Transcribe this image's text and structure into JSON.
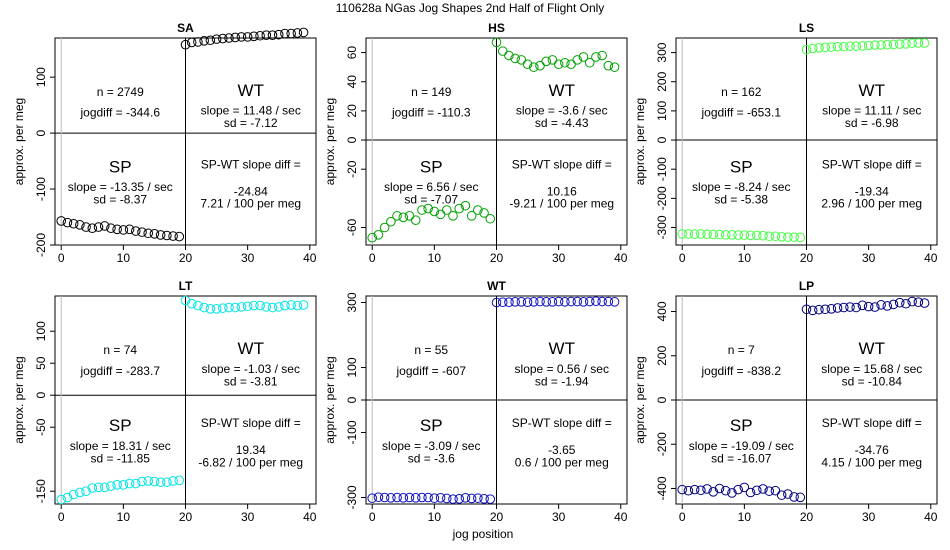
{
  "figure": {
    "title": "110628a   NGas Jog Shapes 2nd Half of Flight Only",
    "xlabel": "jog position"
  },
  "chart_data": [
    {
      "type": "scatter",
      "title": "SA",
      "ylabel": "approx. per meg",
      "xlim": [
        -1,
        41
      ],
      "xticks": [
        0,
        10,
        20,
        30,
        40
      ],
      "ylim": [
        -200,
        170
      ],
      "yticks": [
        -200,
        -100,
        0,
        100
      ],
      "hline": 0,
      "vline": 20,
      "color": "#000000",
      "stats": {
        "n": "n = 2749",
        "jogdiff": "jogdiff = -344.6",
        "wt_label": "WT",
        "wt_slope": "slope = 11.48 / sec",
        "wt_sd": "sd = -7.12",
        "sp_label": "SP",
        "sp_slope": "slope = -13.35 / sec",
        "sp_sd": "sd = -8.37",
        "diff_label": "SP-WT slope diff =",
        "diff_value": "-24.84",
        "diff_rate": "7.21 / 100 per meg"
      },
      "x": [
        0,
        1,
        2,
        3,
        4,
        5,
        6,
        7,
        8,
        9,
        10,
        11,
        12,
        13,
        14,
        15,
        16,
        17,
        18,
        19,
        20,
        21,
        22,
        23,
        24,
        25,
        26,
        27,
        28,
        29,
        30,
        31,
        32,
        33,
        34,
        35,
        36,
        37,
        38,
        39
      ],
      "y": [
        -157,
        -160,
        -162,
        -164,
        -168,
        -170,
        -168,
        -166,
        -170,
        -172,
        -173,
        -172,
        -175,
        -177,
        -179,
        -180,
        -182,
        -183,
        -184,
        -185,
        158,
        162,
        163,
        165,
        166,
        168,
        169,
        170,
        171,
        172,
        172,
        173,
        174,
        175,
        175,
        176,
        178,
        178,
        179,
        180
      ]
    },
    {
      "type": "scatter",
      "title": "HS",
      "ylabel": "approx. per meg",
      "xlim": [
        -1,
        41
      ],
      "xticks": [
        0,
        10,
        20,
        30,
        40
      ],
      "ylim": [
        -72,
        70
      ],
      "yticks": [
        -60,
        -20,
        0,
        20,
        40,
        60
      ],
      "hline": 0,
      "vline": 20,
      "color": "#00a000",
      "stats": {
        "n": "n = 149",
        "jogdiff": "jogdiff = -110.3",
        "wt_label": "WT",
        "wt_slope": "slope = -3.6 / sec",
        "wt_sd": "sd = -4.43",
        "sp_label": "SP",
        "sp_slope": "slope = 6.56 / sec",
        "sp_sd": "sd = -7.07",
        "diff_label": "SP-WT slope diff =",
        "diff_value": "10.16",
        "diff_rate": "-9.21 / 100 per meg"
      },
      "x": [
        0,
        1,
        2,
        3,
        4,
        5,
        6,
        7,
        8,
        9,
        10,
        11,
        12,
        13,
        14,
        15,
        16,
        17,
        18,
        19,
        20,
        21,
        22,
        23,
        24,
        25,
        26,
        27,
        28,
        29,
        30,
        31,
        32,
        33,
        34,
        35,
        36,
        37,
        38,
        39
      ],
      "y": [
        -67,
        -65,
        -60,
        -56,
        -52,
        -53,
        -52,
        -55,
        -48,
        -47,
        -49,
        -51,
        -48,
        -52,
        -47,
        -45,
        -52,
        -48,
        -50,
        -54,
        67,
        61,
        58,
        56,
        55,
        52,
        50,
        51,
        54,
        55,
        52,
        53,
        52,
        55,
        57,
        53,
        57,
        58,
        51,
        50
      ]
    },
    {
      "type": "scatter",
      "title": "LS",
      "ylabel": "approx. per meg",
      "xlim": [
        -1,
        41
      ],
      "xticks": [
        0,
        10,
        20,
        30,
        40
      ],
      "ylim": [
        -360,
        350
      ],
      "yticks": [
        -300,
        -200,
        -100,
        0,
        100,
        200,
        300
      ],
      "hline": 0,
      "vline": 20,
      "color": "#44ff44",
      "stats": {
        "n": "n = 162",
        "jogdiff": "jogdiff = -653.1",
        "wt_label": "WT",
        "wt_slope": "slope = 11.11 / sec",
        "wt_sd": "sd = -6.98",
        "sp_label": "SP",
        "sp_slope": "slope = -8.24 / sec",
        "sp_sd": "sd = -5.38",
        "diff_label": "SP-WT slope diff =",
        "diff_value": "-19.34",
        "diff_rate": "2.96 / 100 per meg"
      },
      "x": [
        0,
        1,
        2,
        3,
        4,
        5,
        6,
        7,
        8,
        9,
        10,
        11,
        12,
        13,
        14,
        15,
        16,
        17,
        18,
        19,
        20,
        21,
        22,
        23,
        24,
        25,
        26,
        27,
        28,
        29,
        30,
        31,
        32,
        33,
        34,
        35,
        36,
        37,
        38,
        39
      ],
      "y": [
        -322,
        -322,
        -323,
        -322,
        -323,
        -324,
        -324,
        -325,
        -325,
        -326,
        -326,
        -327,
        -327,
        -328,
        -330,
        -330,
        -332,
        -333,
        -333,
        -334,
        310,
        314,
        316,
        318,
        319,
        320,
        320,
        322,
        322,
        323,
        324,
        326,
        326,
        327,
        328,
        329,
        330,
        332,
        333,
        333
      ]
    },
    {
      "type": "scatter",
      "title": "LT",
      "ylabel": "approx. per meg",
      "xlim": [
        -1,
        41
      ],
      "xticks": [
        0,
        10,
        20,
        30,
        40
      ],
      "ylim": [
        -170,
        155
      ],
      "yticks": [
        -150,
        -50,
        0,
        50,
        100
      ],
      "hline": 0,
      "vline": 20,
      "color": "#00e5e5",
      "stats": {
        "n": "n = 74",
        "jogdiff": "jogdiff = -283.7",
        "wt_label": "WT",
        "wt_slope": "slope = -1.03 / sec",
        "wt_sd": "sd = -3.81",
        "sp_label": "SP",
        "sp_slope": "slope = 18.31 / sec",
        "sp_sd": "sd = -11.85",
        "diff_label": "SP-WT slope diff =",
        "diff_value": "19.34",
        "diff_rate": "-6.82 / 100 per meg"
      },
      "x": [
        0,
        1,
        2,
        3,
        4,
        5,
        6,
        7,
        8,
        9,
        10,
        11,
        12,
        13,
        14,
        15,
        16,
        17,
        18,
        19,
        20,
        21,
        22,
        23,
        24,
        25,
        26,
        27,
        28,
        29,
        30,
        31,
        32,
        33,
        34,
        35,
        36,
        37,
        38,
        39
      ],
      "y": [
        -163,
        -160,
        -155,
        -152,
        -150,
        -145,
        -144,
        -144,
        -142,
        -140,
        -140,
        -138,
        -138,
        -135,
        -134,
        -135,
        -136,
        -136,
        -134,
        -133,
        148,
        143,
        140,
        137,
        135,
        135,
        136,
        137,
        137,
        138,
        139,
        140,
        140,
        138,
        137,
        138,
        140,
        141,
        140,
        141
      ]
    },
    {
      "type": "scatter",
      "title": "WT",
      "ylabel": "approx. per meg",
      "xlim": [
        -1,
        41
      ],
      "xticks": [
        0,
        10,
        20,
        30,
        40
      ],
      "ylim": [
        -320,
        320
      ],
      "yticks": [
        -300,
        -100,
        0,
        100,
        300
      ],
      "hline": 0,
      "vline": 20,
      "color": "#1010c0",
      "stats": {
        "n": "n = 55",
        "jogdiff": "jogdiff = -607",
        "wt_label": "WT",
        "wt_slope": "slope = 0.56 / sec",
        "wt_sd": "sd = -1.94",
        "sp_label": "SP",
        "sp_slope": "slope = -3.09 / sec",
        "sp_sd": "sd = -3.6",
        "diff_label": "SP-WT slope diff =",
        "diff_value": "-3.65",
        "diff_rate": "0.6 / 100 per meg"
      },
      "x": [
        0,
        1,
        2,
        3,
        4,
        5,
        6,
        7,
        8,
        9,
        10,
        11,
        12,
        13,
        14,
        15,
        16,
        17,
        18,
        19,
        20,
        21,
        22,
        23,
        24,
        25,
        26,
        27,
        28,
        29,
        30,
        31,
        32,
        33,
        34,
        35,
        36,
        37,
        38,
        39
      ],
      "y": [
        -302,
        -299,
        -300,
        -301,
        -300,
        -301,
        -300,
        -301,
        -300,
        -300,
        -302,
        -301,
        -303,
        -305,
        -304,
        -301,
        -303,
        -302,
        -304,
        -305,
        300,
        301,
        301,
        302,
        302,
        301,
        302,
        303,
        302,
        302,
        303,
        302,
        303,
        303,
        302,
        303,
        304,
        303,
        303,
        302
      ]
    },
    {
      "type": "scatter",
      "title": "LP",
      "ylabel": "approx. per meg",
      "xlim": [
        -1,
        41
      ],
      "xticks": [
        0,
        10,
        20,
        30,
        40
      ],
      "ylim": [
        -470,
        470
      ],
      "yticks": [
        -400,
        -200,
        0,
        200,
        400
      ],
      "hline": 0,
      "vline": 20,
      "color": "#000080",
      "stats": {
        "n": "n = 7",
        "jogdiff": "jogdiff = -838.2",
        "wt_label": "WT",
        "wt_slope": "slope = 15.68 / sec",
        "wt_sd": "sd = -10.84",
        "sp_label": "SP",
        "sp_slope": "slope = -19.09 / sec",
        "sp_sd": "sd = -16.07",
        "diff_label": "SP-WT slope diff =",
        "diff_value": "-34.76",
        "diff_rate": "4.15 / 100 per meg"
      },
      "x": [
        0,
        1,
        2,
        3,
        4,
        5,
        6,
        7,
        8,
        9,
        10,
        11,
        12,
        13,
        14,
        15,
        16,
        17,
        18,
        19,
        20,
        21,
        22,
        23,
        24,
        25,
        26,
        27,
        28,
        29,
        30,
        31,
        32,
        33,
        34,
        35,
        36,
        37,
        38,
        39
      ],
      "y": [
        -405,
        -410,
        -405,
        -408,
        -402,
        -415,
        -400,
        -410,
        -420,
        -405,
        -395,
        -418,
        -408,
        -402,
        -412,
        -410,
        -430,
        -425,
        -438,
        -440,
        410,
        405,
        408,
        410,
        412,
        416,
        418,
        420,
        418,
        428,
        422,
        420,
        430,
        425,
        432,
        440,
        435,
        445,
        442,
        438
      ]
    }
  ]
}
